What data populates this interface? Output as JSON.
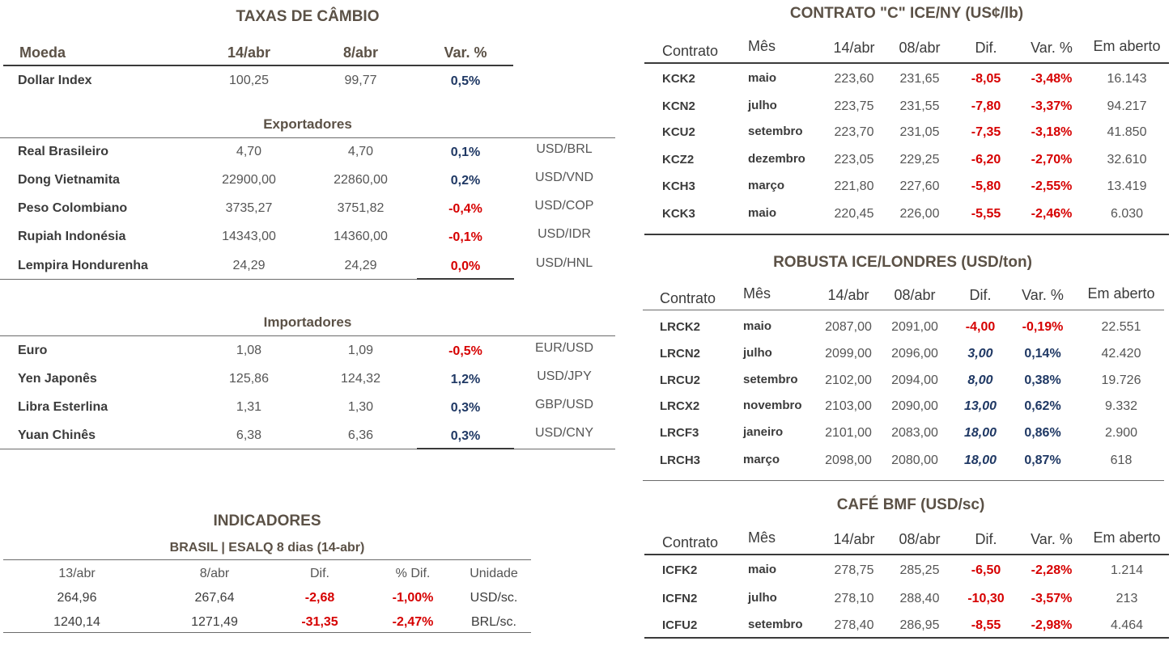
{
  "taxas": {
    "title": "TAXAS DE CÂMBIO",
    "headers": [
      "Moeda",
      "14/abr",
      "8/abr",
      "Var. %"
    ],
    "dollar_index": {
      "name": "Dollar Index",
      "v1": "100,25",
      "v2": "99,77",
      "var": "0,5%"
    },
    "exportadores_label": "Exportadores",
    "exportadores": [
      {
        "name": "Real Brasileiro",
        "v1": "4,70",
        "v2": "4,70",
        "var": "0,1%",
        "pair": "USD/BRL"
      },
      {
        "name": "Dong Vietnamita",
        "v1": "22900,00",
        "v2": "22860,00",
        "var": "0,2%",
        "pair": "USD/VND"
      },
      {
        "name": "Peso Colombiano",
        "v1": "3735,27",
        "v2": "3751,82",
        "var": "-0,4%",
        "pair": "USD/COP"
      },
      {
        "name": "Rupiah Indonésia",
        "v1": "14343,00",
        "v2": "14360,00",
        "var": "-0,1%",
        "pair": "USD/IDR"
      },
      {
        "name": "Lempira Hondurenha",
        "v1": "24,29",
        "v2": "24,29",
        "var": "0,0%",
        "pair": "USD/HNL"
      }
    ],
    "importadores_label": "Importadores",
    "importadores": [
      {
        "name": "Euro",
        "v1": "1,08",
        "v2": "1,09",
        "var": "-0,5%",
        "pair": "EUR/USD"
      },
      {
        "name": "Yen Japonês",
        "v1": "125,86",
        "v2": "124,32",
        "var": "1,2%",
        "pair": "USD/JPY"
      },
      {
        "name": "Libra Esterlina",
        "v1": "1,31",
        "v2": "1,30",
        "var": "0,3%",
        "pair": "GBP/USD"
      },
      {
        "name": "Yuan Chinês",
        "v1": "6,38",
        "v2": "6,36",
        "var": "0,3%",
        "pair": "USD/CNY"
      }
    ]
  },
  "indicadores": {
    "title": "INDICADORES",
    "subtitle": "BRASIL | ESALQ 8 dias (14-abr)",
    "headers": [
      "13/abr",
      "8/abr",
      "Dif.",
      "% Dif.",
      "Unidade"
    ],
    "rows": [
      {
        "v1": "264,96",
        "v2": "267,64",
        "dif": "-2,68",
        "pdif": "-1,00%",
        "unit": "USD/sc."
      },
      {
        "v1": "1240,14",
        "v2": "1271,49",
        "dif": "-31,35",
        "pdif": "-2,47%",
        "unit": "BRL/sc."
      }
    ]
  },
  "contrato_c": {
    "title": "CONTRATO \"C\" ICE/NY (US¢/lb)",
    "headers": [
      "Contrato",
      "Mês",
      "14/abr",
      "08/abr",
      "Dif.",
      "Var. %",
      "Em aberto"
    ],
    "rows": [
      {
        "c": "KCK2",
        "m": "maio",
        "v1": "223,60",
        "v2": "231,65",
        "d": "-8,05",
        "p": "-3,48%",
        "o": "16.143"
      },
      {
        "c": "KCN2",
        "m": "julho",
        "v1": "223,75",
        "v2": "231,55",
        "d": "-7,80",
        "p": "-3,37%",
        "o": "94.217"
      },
      {
        "c": "KCU2",
        "m": "setembro",
        "v1": "223,70",
        "v2": "231,05",
        "d": "-7,35",
        "p": "-3,18%",
        "o": "41.850"
      },
      {
        "c": "KCZ2",
        "m": "dezembro",
        "v1": "223,05",
        "v2": "229,25",
        "d": "-6,20",
        "p": "-2,70%",
        "o": "32.610"
      },
      {
        "c": "KCH3",
        "m": "março",
        "v1": "221,80",
        "v2": "227,60",
        "d": "-5,80",
        "p": "-2,55%",
        "o": "13.419"
      },
      {
        "c": "KCK3",
        "m": "maio",
        "v1": "220,45",
        "v2": "226,00",
        "d": "-5,55",
        "p": "-2,46%",
        "o": "6.030"
      }
    ]
  },
  "robusta": {
    "title": "ROBUSTA ICE/LONDRES (USD/ton)",
    "headers": [
      "Contrato",
      "Mês",
      "14/abr",
      "08/abr",
      "Dif.",
      "Var. %",
      "Em aberto"
    ],
    "rows": [
      {
        "c": "LRCK2",
        "m": "maio",
        "v1": "2087,00",
        "v2": "2091,00",
        "d": "-4,00",
        "p": "-0,19%",
        "o": "22.551"
      },
      {
        "c": "LRCN2",
        "m": "julho",
        "v1": "2099,00",
        "v2": "2096,00",
        "d": "3,00",
        "p": "0,14%",
        "o": "42.420"
      },
      {
        "c": "LRCU2",
        "m": "setembro",
        "v1": "2102,00",
        "v2": "2094,00",
        "d": "8,00",
        "p": "0,38%",
        "o": "19.726"
      },
      {
        "c": "LRCX2",
        "m": "novembro",
        "v1": "2103,00",
        "v2": "2090,00",
        "d": "13,00",
        "p": "0,62%",
        "o": "9.332"
      },
      {
        "c": "LRCF3",
        "m": "janeiro",
        "v1": "2101,00",
        "v2": "2083,00",
        "d": "18,00",
        "p": "0,86%",
        "o": "2.900"
      },
      {
        "c": "LRCH3",
        "m": "março",
        "v1": "2098,00",
        "v2": "2080,00",
        "d": "18,00",
        "p": "0,87%",
        "o": "618"
      }
    ]
  },
  "bmf": {
    "title": "CAFÉ BMF (USD/sc)",
    "headers": [
      "Contrato",
      "Mês",
      "14/abr",
      "08/abr",
      "Dif.",
      "Var. %",
      "Em aberto"
    ],
    "rows": [
      {
        "c": "ICFK2",
        "m": "maio",
        "v1": "278,75",
        "v2": "285,25",
        "d": "-6,50",
        "p": "-2,28%",
        "o": "1.214"
      },
      {
        "c": "ICFN2",
        "m": "julho",
        "v1": "278,10",
        "v2": "288,40",
        "d": "-10,30",
        "p": "-3,57%",
        "o": "213"
      },
      {
        "c": "ICFU2",
        "m": "setembro",
        "v1": "278,40",
        "v2": "286,95",
        "d": "-8,55",
        "p": "-2,98%",
        "o": "4.464"
      }
    ]
  },
  "colors": {
    "positive": "#1f3864",
    "negative": "#d60000",
    "heading": "#5b5146"
  }
}
